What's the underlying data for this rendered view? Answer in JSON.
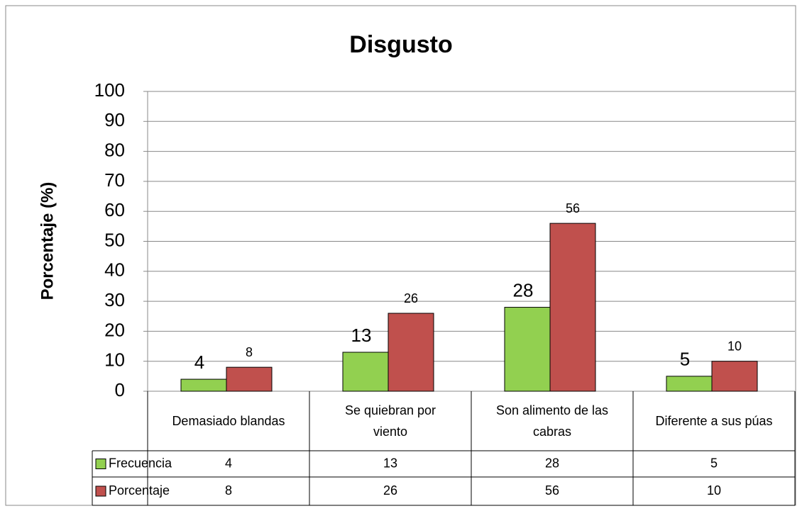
{
  "chart_data": {
    "type": "bar",
    "title": "Disgusto",
    "y_label": "Porcentaje (%)",
    "categories": [
      "Demasiado blandas",
      "Se quiebran por viento",
      "Son alimento de las cabras",
      "Diferente a sus púas"
    ],
    "series": [
      {
        "name": "Frecuencia",
        "color": "#92d050",
        "values": [
          4,
          13,
          28,
          5
        ]
      },
      {
        "name": "Porcentaje",
        "color": "#c0504d",
        "values": [
          8,
          26,
          56,
          10
        ]
      }
    ],
    "ylim": [
      0,
      100
    ],
    "yticks": [
      0,
      10,
      20,
      30,
      40,
      50,
      60,
      70,
      80,
      90,
      100
    ],
    "grid": true,
    "data_table": true
  }
}
